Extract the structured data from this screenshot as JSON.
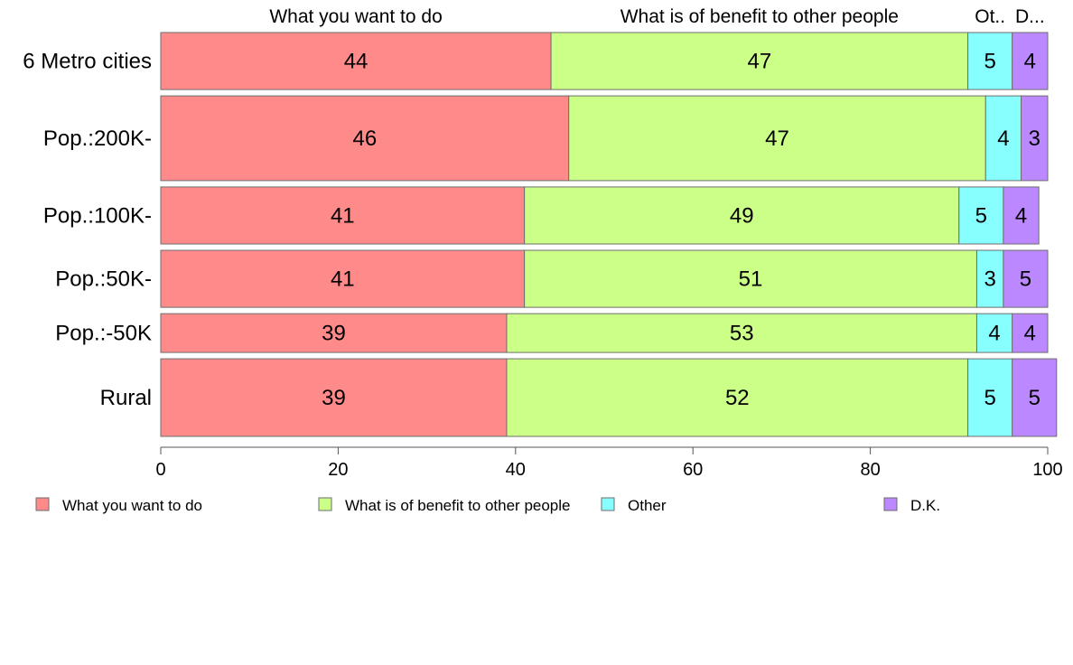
{
  "chart_data": {
    "type": "bar",
    "orientation": "horizontal",
    "stacked": true,
    "categories": [
      "6 Metro cities",
      "Pop.:200K-",
      "Pop.:100K-",
      "Pop.:50K-",
      "Pop.:-50K",
      "Rural"
    ],
    "category_shares": [
      0.144,
      0.214,
      0.144,
      0.144,
      0.098,
      0.196
    ],
    "series": [
      {
        "name": "What you want to do",
        "color": "#ff8a8a",
        "values": [
          44,
          46,
          41,
          41,
          39,
          39
        ],
        "labels": [
          "44",
          "46",
          "41",
          "41",
          "39",
          "39"
        ]
      },
      {
        "name": "What is of benefit to other people",
        "color": "#ccff88",
        "values": [
          47,
          47,
          49,
          51,
          53,
          52
        ],
        "labels": [
          "47",
          "47",
          "49",
          "51",
          "53",
          "52"
        ]
      },
      {
        "name": "Other",
        "color": "#88ffff",
        "values": [
          5,
          4,
          5,
          3,
          4,
          5
        ],
        "labels": [
          "5",
          "4",
          "5",
          "3",
          "4",
          "5"
        ]
      },
      {
        "name": "D.K.",
        "color": "#bb88ff",
        "values": [
          4,
          3,
          4,
          5,
          4,
          5
        ],
        "labels": [
          "4",
          "3",
          "4",
          "5",
          "4",
          "5"
        ]
      }
    ],
    "column_headers": [
      "What you want to do",
      "What is of benefit to other people",
      "Ot..",
      "D..."
    ],
    "xlim": [
      0,
      100
    ],
    "xticks": [
      0,
      20,
      40,
      60,
      80,
      100
    ],
    "xtick_labels": [
      "0",
      "20",
      "40",
      "60",
      "80",
      "100"
    ],
    "grid": false,
    "legend_position": "bottom",
    "legend_labels": [
      "What you want to do",
      "What is of benefit to other people",
      "Other",
      "D.K."
    ]
  }
}
